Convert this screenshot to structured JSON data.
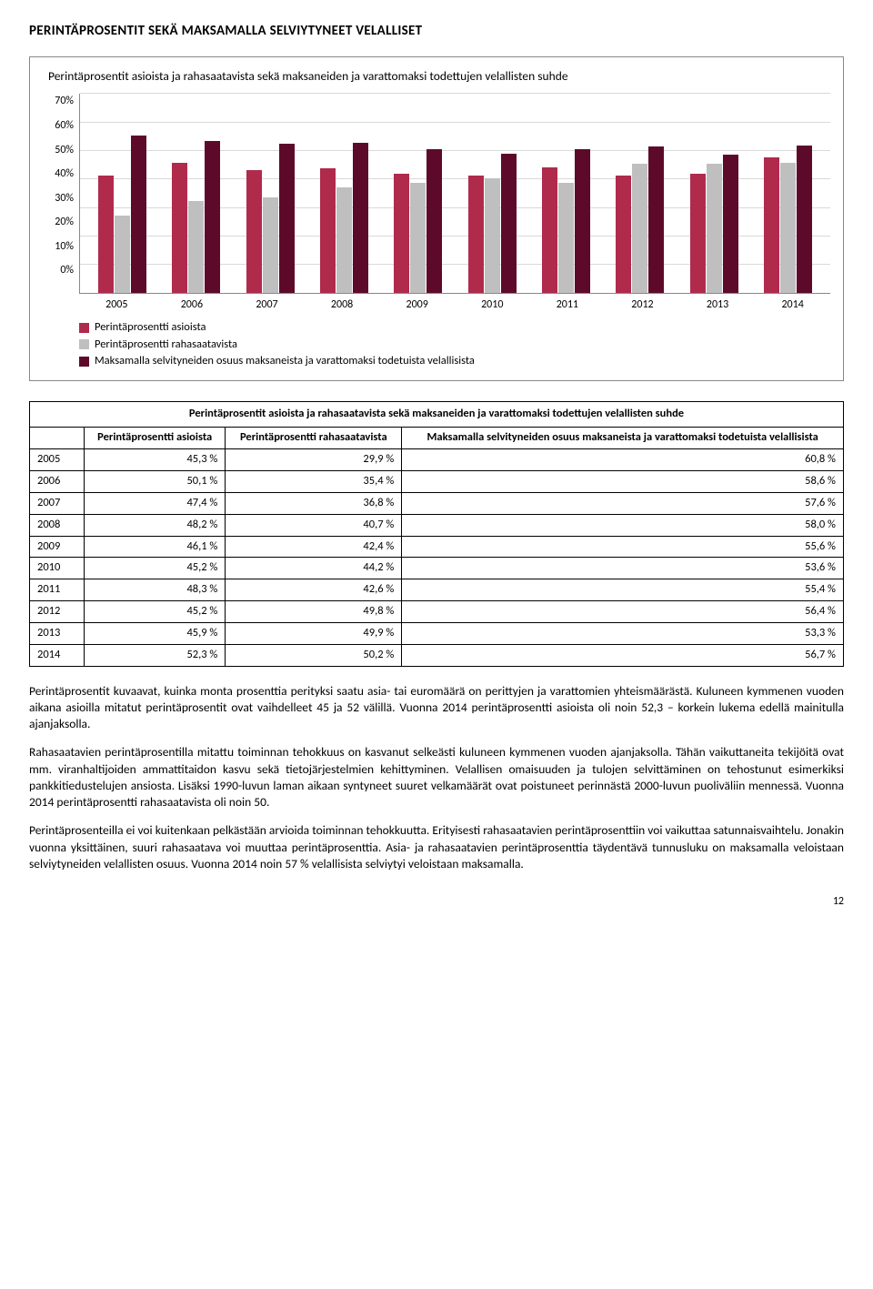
{
  "page": {
    "title": "PERINTÄPROSENTIT SEKÄ MAKSAMALLA SELVIYTYNEET VELALLISET",
    "number": "12"
  },
  "chart": {
    "type": "bar",
    "title": "Perintäprosentit asioista ja rahasaatavista sekä maksaneiden ja varattomaksi todettujen velallisten suhde",
    "years": [
      "2005",
      "2006",
      "2007",
      "2008",
      "2009",
      "2010",
      "2011",
      "2012",
      "2013",
      "2014"
    ],
    "ymax": 70,
    "yticks": [
      "70%",
      "60%",
      "50%",
      "40%",
      "30%",
      "20%",
      "10%",
      "0%"
    ],
    "series": [
      {
        "label": "Perintäprosentti asioista",
        "color": "#b02a4c",
        "values": [
          45.3,
          50.1,
          47.4,
          48.2,
          46.1,
          45.2,
          48.3,
          45.2,
          45.9,
          52.3
        ]
      },
      {
        "label": "Perintäprosentti rahasaatavista",
        "color": "#bfbfbf",
        "values": [
          29.9,
          35.4,
          36.8,
          40.7,
          42.4,
          44.2,
          42.6,
          49.8,
          49.9,
          50.2
        ]
      },
      {
        "label": "Maksamalla selvityneiden osuus maksaneista ja varattomaksi todetuista velallisista",
        "color": "#5d0a2a",
        "values": [
          60.8,
          58.6,
          57.6,
          58.0,
          55.6,
          53.6,
          55.4,
          56.4,
          53.3,
          56.7
        ]
      }
    ]
  },
  "table": {
    "caption": "Perintäprosentit asioista ja rahasaatavista sekä maksaneiden ja varattomaksi todettujen velallisten suhde",
    "columns": [
      "Perintäprosentti asioista",
      "Perintäprosentti rahasaatavista",
      "Maksamalla selvityneiden osuus maksaneista ja varattomaksi todetuista velallisista"
    ],
    "rows": [
      [
        "2005",
        "45,3 %",
        "29,9 %",
        "60,8 %"
      ],
      [
        "2006",
        "50,1 %",
        "35,4 %",
        "58,6 %"
      ],
      [
        "2007",
        "47,4 %",
        "36,8 %",
        "57,6 %"
      ],
      [
        "2008",
        "48,2 %",
        "40,7 %",
        "58,0 %"
      ],
      [
        "2009",
        "46,1 %",
        "42,4 %",
        "55,6 %"
      ],
      [
        "2010",
        "45,2 %",
        "44,2 %",
        "53,6 %"
      ],
      [
        "2011",
        "48,3 %",
        "42,6 %",
        "55,4 %"
      ],
      [
        "2012",
        "45,2 %",
        "49,8 %",
        "56,4 %"
      ],
      [
        "2013",
        "45,9 %",
        "49,9 %",
        "53,3 %"
      ],
      [
        "2014",
        "52,3 %",
        "50,2 %",
        "56,7 %"
      ]
    ]
  },
  "paragraphs": {
    "p1": "Perintäprosentit kuvaavat, kuinka monta prosenttia perityksi saatu asia- tai euromäärä on perittyjen ja varattomien yhteismäärästä. Kuluneen kymmenen vuoden aikana asioilla mitatut perintäprosentit ovat vaihdelleet 45 ja 52 välillä. Vuonna 2014 perintäprosentti asioista oli noin 52,3 – korkein lukema edellä mainitulla ajanjaksolla.",
    "p2": "Rahasaatavien perintäprosentilla mitattu toiminnan tehokkuus on kasvanut selkeästi kuluneen kymmenen vuoden ajanjaksolla. Tähän vaikuttaneita tekijöitä ovat mm. viranhaltijoiden ammattitaidon kasvu sekä tietojärjestelmien kehittyminen. Velallisen omaisuuden ja tulojen selvittäminen on tehostunut esimerkiksi pankkitiedustelujen ansiosta. Lisäksi 1990-luvun laman aikaan syntyneet suuret velkamäärät ovat poistuneet perinnästä 2000-luvun puoliväliin mennessä. Vuonna 2014 perintäprosentti rahasaatavista oli noin 50.",
    "p3": "Perintäprosenteilla ei voi kuitenkaan pelkästään arvioida toiminnan tehokkuutta. Erityisesti rahasaatavien perintäprosenttiin voi vaikuttaa satunnaisvaihtelu. Jonakin vuonna yksittäinen, suuri rahasaatava voi muuttaa perintäprosenttia. Asia- ja rahasaatavien perintäprosenttia täydentävä tunnusluku on maksamalla veloistaan selviytyneiden velallisten osuus. Vuonna 2014 noin 57 % velallisista selviytyi veloistaan maksamalla."
  }
}
